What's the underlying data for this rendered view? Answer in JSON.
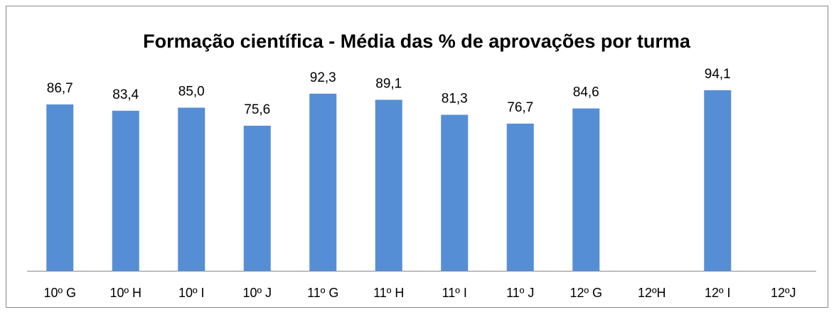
{
  "chart_data": {
    "type": "bar",
    "title": "Formação científica - Média das % de aprovações por turma",
    "categories": [
      "10º G",
      "10º H",
      "10º I",
      "10º J",
      "11º G",
      "11º H",
      "11º I",
      "11º J",
      "12º G",
      "12ºH",
      "12º I",
      "12ºJ"
    ],
    "values": [
      86.7,
      83.4,
      85.0,
      75.6,
      92.3,
      89.1,
      81.3,
      76.7,
      84.6,
      null,
      94.1,
      null
    ],
    "value_labels": [
      "86,7",
      "83,4",
      "85,0",
      "75,6",
      "92,3",
      "89,1",
      "81,3",
      "76,7",
      "84,6",
      null,
      "94,1",
      null
    ],
    "color": "#558ed5",
    "ylim": [
      0,
      100
    ]
  }
}
